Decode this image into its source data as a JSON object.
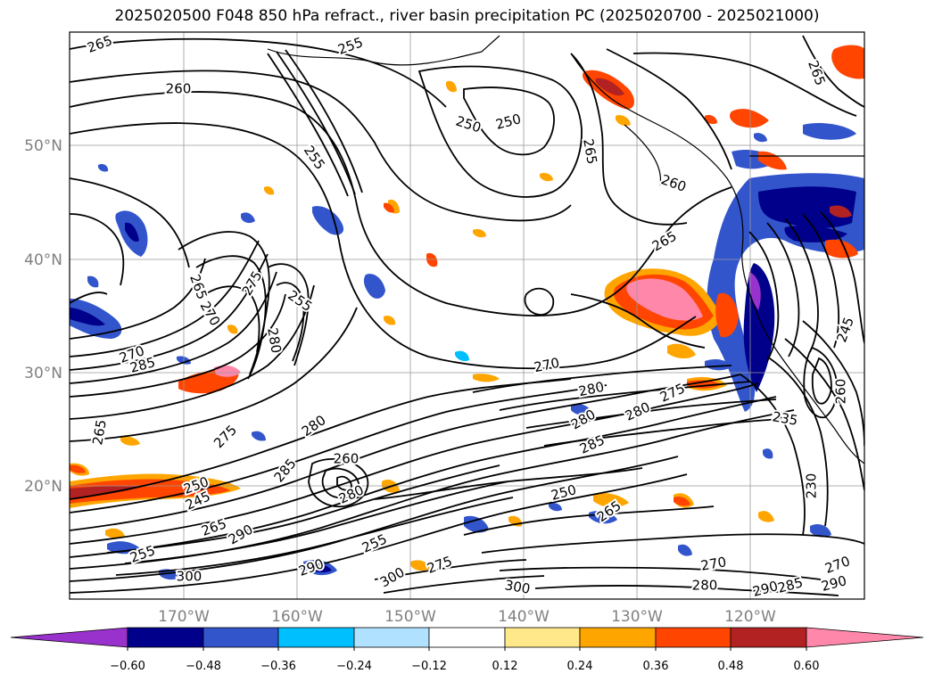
{
  "title": "2025020500 F048 850 hPa refract., river basin precipitation PC (2025020700 - 2025021000)",
  "map": {
    "lat_labels": [
      "50°N",
      "40°N",
      "30°N",
      "20°N"
    ],
    "lon_labels": [
      "170°W",
      "160°W",
      "150°W",
      "140°W",
      "130°W",
      "120°W"
    ],
    "contour_labels": [
      {
        "text": "265"
      },
      {
        "text": "255"
      },
      {
        "text": "260"
      },
      {
        "text": "250"
      },
      {
        "text": "250"
      },
      {
        "text": "255"
      },
      {
        "text": "265"
      },
      {
        "text": "265"
      },
      {
        "text": "265"
      },
      {
        "text": "260"
      },
      {
        "text": "265"
      },
      {
        "text": "275"
      },
      {
        "text": "270"
      },
      {
        "text": "255"
      },
      {
        "text": "280"
      },
      {
        "text": "270"
      },
      {
        "text": "285"
      },
      {
        "text": "265"
      },
      {
        "text": "270"
      },
      {
        "text": "280"
      },
      {
        "text": "280"
      },
      {
        "text": "275"
      },
      {
        "text": "280"
      },
      {
        "text": "285"
      },
      {
        "text": "260"
      },
      {
        "text": "275"
      },
      {
        "text": "280"
      },
      {
        "text": "285"
      },
      {
        "text": "245"
      },
      {
        "text": "250"
      },
      {
        "text": "265"
      },
      {
        "text": "265"
      },
      {
        "text": "290"
      },
      {
        "text": "255"
      },
      {
        "text": "250"
      },
      {
        "text": "280"
      },
      {
        "text": "255"
      },
      {
        "text": "290"
      },
      {
        "text": "300"
      },
      {
        "text": "300"
      },
      {
        "text": "275"
      },
      {
        "text": "300"
      },
      {
        "text": "270"
      },
      {
        "text": "280"
      },
      {
        "text": "290"
      },
      {
        "text": "285"
      },
      {
        "text": "270"
      },
      {
        "text": "290"
      },
      {
        "text": "235"
      },
      {
        "text": "230"
      },
      {
        "text": "245"
      },
      {
        "text": "260"
      }
    ]
  },
  "colorbar": {
    "ticks": [
      "−0.60",
      "−0.48",
      "−0.36",
      "−0.24",
      "−0.12",
      "0.12",
      "0.24",
      "0.36",
      "0.48",
      "0.60"
    ],
    "colors": {
      "extend_low": "#9932cc",
      "bins": [
        "#00008b",
        "#3355cc",
        "#00bfff",
        "#b0e2ff",
        "#ffffff",
        "#ffe88a",
        "#ffa500",
        "#ff4500",
        "#b22222"
      ],
      "extend_high": "#ff88aa"
    }
  }
}
